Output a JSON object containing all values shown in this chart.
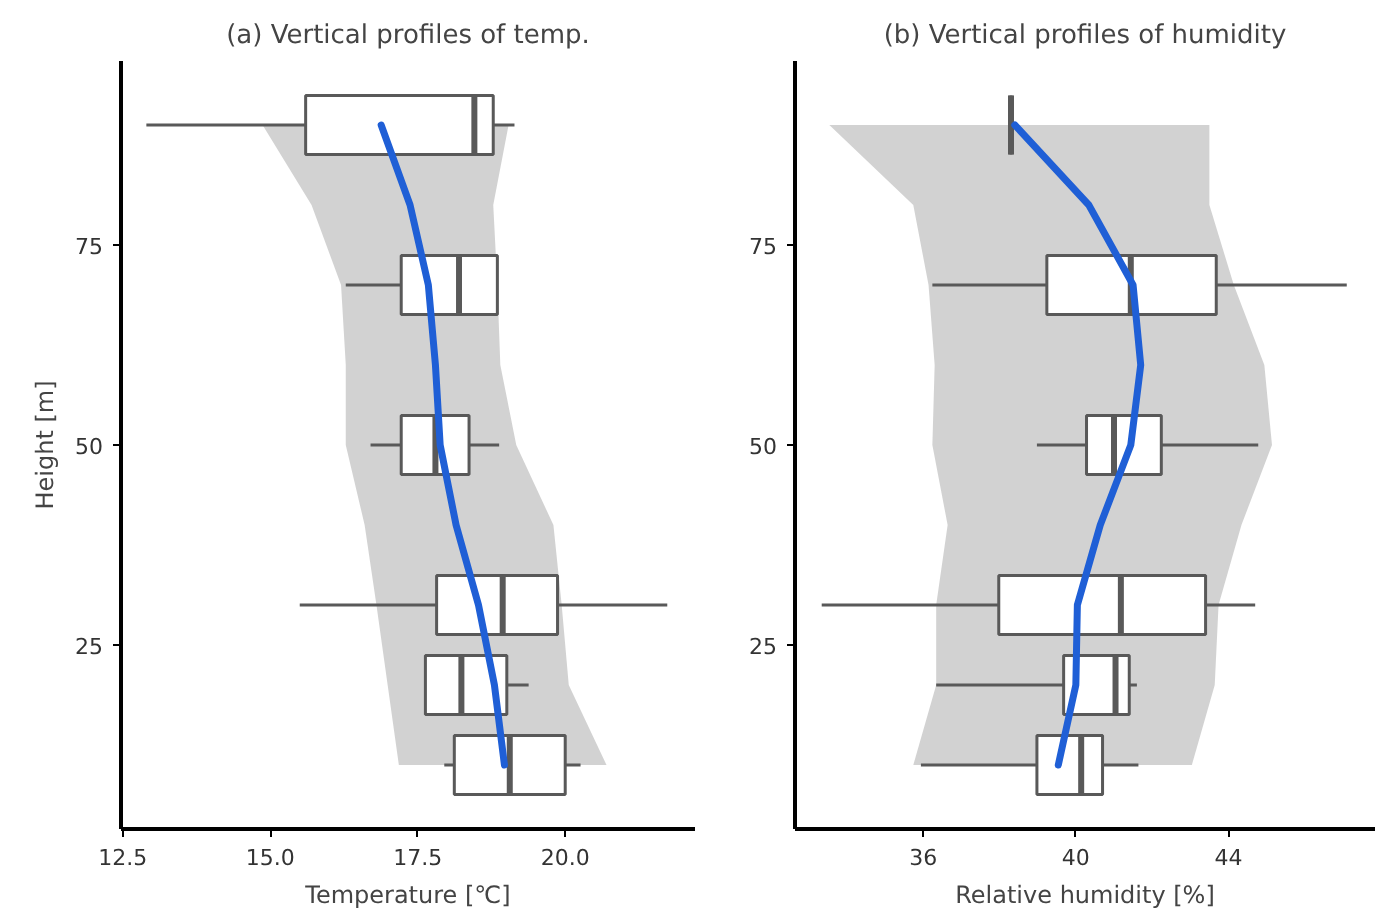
{
  "chart_data": [
    {
      "type": "box",
      "orientation": "horizontal",
      "title": "(a) Vertical profiles of temp.",
      "xlabel": "Temperature [℃]",
      "ylabel": "Height [m]",
      "x": [
        10,
        20,
        30,
        50,
        70,
        90
      ],
      "xlim": [
        12.47,
        22.2
      ],
      "xticks": [
        12.5,
        {
          "value": 15,
          "label": "15.0"
        },
        17.5,
        {
          "value": 20,
          "label": "20.0"
        }
      ],
      "ylim": [
        2,
        98
      ],
      "yticks": [
        25,
        50,
        75
      ],
      "grid": false,
      "series": [
        {
          "color": "#595959",
          "boxes": [
            {
              "low": 17.95,
              "q1": 18.12,
              "median": 19.06,
              "q3": 20.0,
              "high": 20.26
            },
            {
              "low": 17.63,
              "q1": 17.63,
              "median": 18.24,
              "q3": 19.01,
              "high": 19.38
            },
            {
              "low": 15.5,
              "q1": 17.82,
              "median": 18.94,
              "q3": 19.87,
              "high": 21.73
            },
            {
              "low": 16.7,
              "q1": 17.22,
              "median": 17.8,
              "q3": 18.37,
              "high": 18.88
            },
            {
              "low": 16.28,
              "q1": 17.22,
              "median": 18.2,
              "q3": 18.85,
              "high": 18.85
            },
            {
              "low": 12.9,
              "q1": 15.6,
              "median": 18.46,
              "q3": 18.78,
              "high": 19.14
            }
          ]
        },
        {
          "type": "line",
          "color": "#1f5fd6",
          "x": [
            10,
            20,
            30,
            40,
            50,
            60,
            70,
            80,
            90
          ],
          "values": [
            18.97,
            18.8,
            18.53,
            18.15,
            17.88,
            17.8,
            17.68,
            17.37,
            16.88
          ],
          "lower": [
            17.18,
            16.99,
            16.8,
            16.6,
            16.28,
            16.28,
            16.2,
            15.7,
            14.87
          ],
          "upper": [
            20.7,
            20.06,
            19.94,
            19.8,
            19.17,
            18.9,
            18.85,
            18.78,
            19.04
          ]
        }
      ]
    },
    {
      "type": "box",
      "orientation": "horizontal",
      "title": "(b) Vertical profiles of humidity",
      "xlabel": "Relative humidity [%]",
      "x": [
        10,
        20,
        30,
        50,
        70,
        90
      ],
      "xlim": [
        32.64,
        47.84
      ],
      "xticks": [
        36,
        40,
        44
      ],
      "ylim": [
        2,
        98
      ],
      "yticks": [
        25,
        50,
        75
      ],
      "grid": false,
      "series": [
        {
          "color": "#595959",
          "boxes": [
            {
              "low": 35.94,
              "q1": 38.98,
              "median": 40.14,
              "q3": 40.7,
              "high": 41.64
            },
            {
              "low": 36.34,
              "q1": 39.68,
              "median": 41.04,
              "q3": 41.4,
              "high": 41.6
            },
            {
              "low": 33.34,
              "q1": 37.98,
              "median": 41.18,
              "q3": 43.4,
              "high": 44.7
            },
            {
              "low": 38.98,
              "q1": 40.28,
              "median": 41.0,
              "q3": 42.24,
              "high": 44.78
            },
            {
              "low": 36.24,
              "q1": 39.24,
              "median": 41.44,
              "q3": 43.68,
              "high": 47.1
            },
            {
              "low": 38.3,
              "q1": 38.3,
              "median": 38.3,
              "q3": 38.3,
              "high": 38.3
            }
          ]
        },
        {
          "type": "line",
          "color": "#1f5fd6",
          "x": [
            10,
            20,
            30,
            40,
            50,
            60,
            70,
            80,
            90
          ],
          "values": [
            39.54,
            40.0,
            40.04,
            40.64,
            41.44,
            41.7,
            41.5,
            40.34,
            38.4
          ],
          "lower": [
            35.74,
            36.34,
            36.34,
            36.64,
            36.24,
            36.3,
            36.14,
            35.74,
            33.54
          ],
          "upper": [
            43.04,
            43.64,
            43.74,
            44.34,
            45.14,
            44.94,
            44.14,
            43.5,
            43.5
          ]
        }
      ]
    }
  ]
}
